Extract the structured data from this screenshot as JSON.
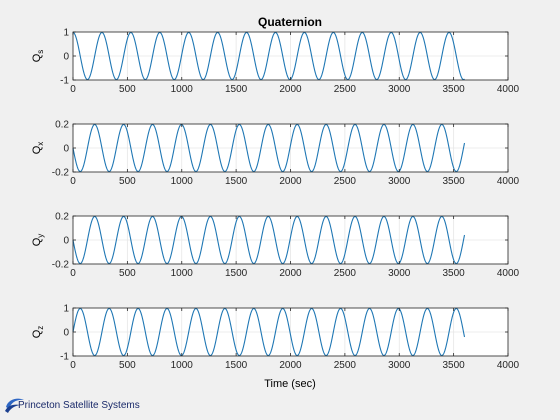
{
  "figure": {
    "title": "Quaternion",
    "xlabel": "Time (sec)",
    "xlim": [
      0,
      4000
    ],
    "xticks": [
      0,
      500,
      1000,
      1500,
      2000,
      2500,
      3000,
      3500,
      4000
    ],
    "grid": true,
    "line_color": "#1f77b4",
    "axes_color": "#ffffff",
    "figure_color": "#f0f0f0"
  },
  "branding": {
    "logo_icon": "swoosh-logo-icon",
    "logo_text": "Princeton Satellite Systems"
  },
  "chart_data": [
    {
      "type": "line",
      "ylabel_main": "Q",
      "ylabel_sub": "s",
      "ylim": [
        -1,
        1
      ],
      "yticks": [
        -1,
        0,
        1
      ],
      "x_range": [
        0,
        3600
      ],
      "series": [
        {
          "model": "sinusoid",
          "amplitude": 0.98,
          "period_sec": 266,
          "phase_deg": 90
        }
      ]
    },
    {
      "type": "line",
      "ylabel_main": "Q",
      "ylabel_sub": "x",
      "ylim": [
        -0.2,
        0.2
      ],
      "yticks": [
        -0.2,
        0,
        0.2
      ],
      "x_range": [
        0,
        3600
      ],
      "series": [
        {
          "model": "sinusoid",
          "amplitude": 0.196,
          "period_sec": 266,
          "phase_deg": 180
        }
      ]
    },
    {
      "type": "line",
      "ylabel_main": "Q",
      "ylabel_sub": "y",
      "ylim": [
        -0.2,
        0.2
      ],
      "yticks": [
        -0.2,
        0,
        0.2
      ],
      "x_range": [
        0,
        3600
      ],
      "series": [
        {
          "model": "sinusoid",
          "amplitude": 0.196,
          "period_sec": 266,
          "phase_deg": 180
        }
      ]
    },
    {
      "type": "line",
      "ylabel_main": "Q",
      "ylabel_sub": "z",
      "ylim": [
        -1,
        1
      ],
      "yticks": [
        -1,
        0,
        1
      ],
      "x_range": [
        0,
        3600
      ],
      "series": [
        {
          "model": "sinusoid",
          "amplitude": 0.98,
          "period_sec": 266,
          "phase_deg": 0
        }
      ]
    }
  ]
}
